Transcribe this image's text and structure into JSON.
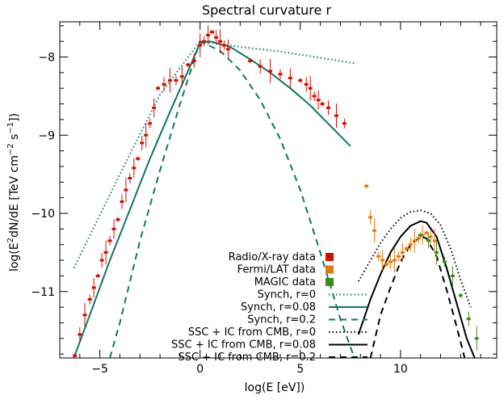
{
  "chart_data": {
    "type": "line",
    "title": "Spectral curvature r",
    "xlabel": "log(E [eV])",
    "ylabel_parts": [
      "log(E",
      "2",
      "dN/dE [TeV cm",
      "−2",
      " s",
      "−1",
      "])"
    ],
    "xlim": [
      -7,
      14.8
    ],
    "ylim": [
      -11.85,
      -7.55
    ],
    "x_ticks": [
      -5,
      0,
      5,
      10
    ],
    "x_tick_labels": [
      "−5",
      "0",
      "5",
      "10"
    ],
    "y_ticks": [
      -11,
      -10,
      -9,
      -8
    ],
    "y_tick_labels": [
      "−11",
      "−10",
      "−9",
      "−8"
    ],
    "legend_position": "center-right",
    "colors": {
      "radio_xray": "#cc1100",
      "fermi": "#e07a10",
      "magic": "#3a8a1a",
      "synch": "#137566",
      "ssc": "#000000"
    },
    "series": [
      {
        "name": "Synch, r=0",
        "style": "dotted",
        "color": "#137566",
        "x": [
          -6.3,
          -4,
          -2,
          0,
          2,
          4,
          6,
          7.7
        ],
        "y": [
          -10.7,
          -9.5,
          -8.48,
          -7.8,
          -7.87,
          -7.93,
          -8.01,
          -8.08
        ]
      },
      {
        "name": "Synch, r=0.08",
        "style": "solid",
        "color": "#137566",
        "x": [
          -6.3,
          -5.5,
          -4.5,
          -3.5,
          -2.5,
          -1.5,
          -0.5,
          0,
          0.5,
          1.5,
          2.5,
          3.5,
          4.5,
          5.5,
          6.5,
          7.5
        ],
        "y": [
          -11.85,
          -11.3,
          -10.6,
          -9.95,
          -9.3,
          -8.7,
          -8.12,
          -7.82,
          -7.8,
          -7.87,
          -8.03,
          -8.2,
          -8.4,
          -8.62,
          -8.88,
          -9.14
        ]
      },
      {
        "name": "Synch, r=0.2",
        "style": "dashed",
        "color": "#137566",
        "x": [
          -4.5,
          -4,
          -3,
          -2,
          -1,
          0,
          1,
          2,
          3,
          4,
          5,
          6,
          7,
          7.7
        ],
        "y": [
          -11.85,
          -11.4,
          -10.35,
          -9.45,
          -8.6,
          -7.8,
          -7.92,
          -8.17,
          -8.55,
          -9.05,
          -9.7,
          -10.5,
          -11.35,
          -11.85
        ]
      },
      {
        "name": "SSC + IC from CMB, r=0",
        "style": "dotted",
        "color": "#000000",
        "x": [
          7.9,
          8.5,
          9,
          9.5,
          10,
          10.5,
          11,
          11.5,
          12,
          12.5,
          13,
          13.5
        ],
        "y": [
          -10.87,
          -10.6,
          -10.38,
          -10.2,
          -10.06,
          -9.98,
          -9.96,
          -10.0,
          -10.15,
          -10.45,
          -10.85,
          -11.2
        ]
      },
      {
        "name": "SSC + IC from CMB, r=0.08",
        "style": "solid",
        "color": "#000000",
        "x": [
          7.9,
          8.5,
          9,
          9.5,
          10,
          10.5,
          11,
          11.3,
          11.8,
          12.3,
          12.8,
          13.3,
          13.7
        ],
        "y": [
          -11.55,
          -11.1,
          -10.78,
          -10.5,
          -10.3,
          -10.16,
          -10.1,
          -10.12,
          -10.3,
          -10.7,
          -11.15,
          -11.6,
          -11.85
        ]
      },
      {
        "name": "SSC + IC from CMB, r=0.2",
        "style": "dashed",
        "color": "#000000",
        "x": [
          8.5,
          9,
          9.5,
          10,
          10.5,
          11,
          11.3,
          11.8,
          12.3,
          12.8,
          13.2
        ],
        "y": [
          -11.85,
          -11.3,
          -10.95,
          -10.62,
          -10.4,
          -10.3,
          -10.32,
          -10.55,
          -10.98,
          -11.45,
          -11.85
        ]
      },
      {
        "name": "Radio/X-ray data",
        "type": "scatter",
        "color": "#cc1100",
        "x": [
          -6.25,
          -6.0,
          -5.75,
          -5.5,
          -5.3,
          -5.1,
          -4.9,
          -4.7,
          -4.5,
          -4.3,
          -4.1,
          -3.9,
          -3.7,
          -3.5,
          -3.3,
          -3.1,
          -2.9,
          -2.7,
          -2.5,
          -2.3,
          -2.1,
          -1.8,
          -1.5,
          -1.2,
          -0.9,
          -0.6,
          -0.3,
          0.0,
          0.2,
          0.4,
          0.6,
          0.8,
          1.0,
          1.2,
          1.4,
          2.5,
          3.0,
          3.5,
          4.0,
          4.5,
          5.0,
          5.3,
          5.5,
          5.7,
          5.9,
          6.1,
          6.4,
          6.8,
          7.2
        ],
        "y": [
          -11.82,
          -11.55,
          -11.3,
          -11.1,
          -10.95,
          -10.8,
          -10.6,
          -10.5,
          -10.35,
          -10.2,
          -10.08,
          -9.85,
          -9.7,
          -9.55,
          -9.42,
          -9.3,
          -9.1,
          -9.0,
          -8.85,
          -8.65,
          -8.4,
          -8.35,
          -8.3,
          -8.3,
          -8.25,
          -8.1,
          -8.05,
          -7.85,
          -7.8,
          -7.72,
          -7.68,
          -7.75,
          -7.8,
          -7.85,
          -7.9,
          -8.05,
          -8.12,
          -8.18,
          -8.22,
          -8.27,
          -8.3,
          -8.35,
          -8.4,
          -8.5,
          -8.55,
          -8.6,
          -8.65,
          -8.75,
          -8.85
        ]
      },
      {
        "name": "Fermi/LAT data",
        "type": "scatter",
        "color": "#e07a10",
        "x": [
          8.3,
          8.5,
          8.7,
          8.9,
          9.1,
          9.3,
          9.5,
          9.7,
          9.9,
          10.1,
          10.3,
          10.5,
          10.7,
          10.9,
          11.1,
          11.3,
          11.5,
          11.7
        ],
        "y": [
          -9.65,
          -10.05,
          -10.22,
          -10.55,
          -10.6,
          -10.65,
          -10.62,
          -10.6,
          -10.55,
          -10.5,
          -10.45,
          -10.4,
          -10.35,
          -10.32,
          -10.28,
          -10.25,
          -10.3,
          -10.35
        ]
      },
      {
        "name": "MAGIC data",
        "type": "scatter",
        "color": "#3a8a1a",
        "x": [
          11.0,
          11.4,
          11.8,
          12.2,
          12.6,
          13.0,
          13.4,
          13.8
        ],
        "y": [
          -10.28,
          -10.35,
          -10.5,
          -10.62,
          -10.8,
          -11.05,
          -11.35,
          -11.6
        ]
      }
    ]
  }
}
